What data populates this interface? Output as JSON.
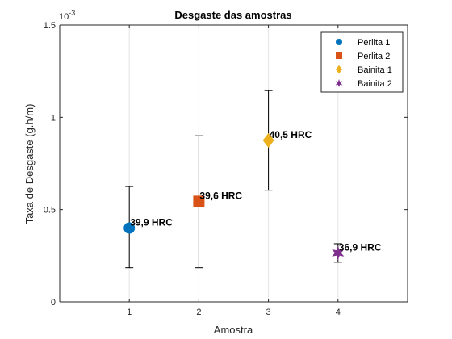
{
  "chart_data": {
    "type": "scatter",
    "title": "Desgaste das amostras",
    "xlabel": "Amostra",
    "ylabel": "Taxa de Desgaste (g.h/m)",
    "y_exponent_base": "10",
    "y_exponent": "-3",
    "xlim": [
      0,
      5
    ],
    "ylim": [
      0,
      1.5
    ],
    "xticks": [
      1,
      2,
      3,
      4
    ],
    "xtick_labels": [
      "1",
      "2",
      "3",
      "4"
    ],
    "yticks": [
      0,
      0.5,
      1,
      1.5
    ],
    "ytick_labels": [
      "0",
      "0.5",
      "1",
      "1.5"
    ],
    "grid": "x-only",
    "legend_position": "top-right",
    "series": [
      {
        "name": "Perlita 1",
        "marker": "circle",
        "color": "#0072BD",
        "x": 1,
        "y": 0.4,
        "err_low": 0.185,
        "err_high": 0.625,
        "label": "39,9 HRC"
      },
      {
        "name": "Perlita 2",
        "marker": "square",
        "color": "#D95319",
        "x": 2,
        "y": 0.545,
        "err_low": 0.185,
        "err_high": 0.9,
        "label": "39,6 HRC"
      },
      {
        "name": "Bainita 1",
        "marker": "diamond",
        "color": "#EDB120",
        "x": 3,
        "y": 0.875,
        "err_low": 0.605,
        "err_high": 1.145,
        "label": "40,5 HRC"
      },
      {
        "name": "Bainita 2",
        "marker": "star",
        "color": "#7E2F8E",
        "x": 4,
        "y": 0.265,
        "err_low": 0.215,
        "err_high": 0.315,
        "label": "36,9 HRC"
      }
    ]
  }
}
